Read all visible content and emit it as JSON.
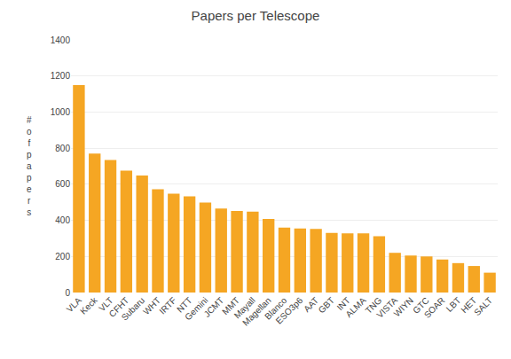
{
  "chart_data": {
    "type": "bar",
    "title": "Papers per Telescope",
    "ylabel": "#ofpapers",
    "categories": [
      "VLA",
      "Keck",
      "VLT",
      "CFHT",
      "Subaru",
      "WHT",
      "IRTF",
      "NTT",
      "Gemini",
      "JCMT",
      "MMT",
      "Mayall",
      "Magellan",
      "Blanco",
      "ESO3p6",
      "AAT",
      "GBT",
      "INT",
      "ALMA",
      "TNG",
      "VISTA",
      "WIYN",
      "GTC",
      "SOAR",
      "LBT",
      "HET",
      "SALT"
    ],
    "values": [
      1150,
      770,
      735,
      675,
      648,
      572,
      548,
      533,
      498,
      466,
      452,
      448,
      408,
      360,
      355,
      352,
      330,
      328,
      328,
      312,
      220,
      205,
      200,
      183,
      163,
      147,
      110
    ],
    "color": "#F5A623",
    "ylim": [
      0,
      1400
    ],
    "yticks": [
      0,
      200,
      400,
      600,
      800,
      1000,
      1200,
      1400
    ],
    "grid": true
  }
}
